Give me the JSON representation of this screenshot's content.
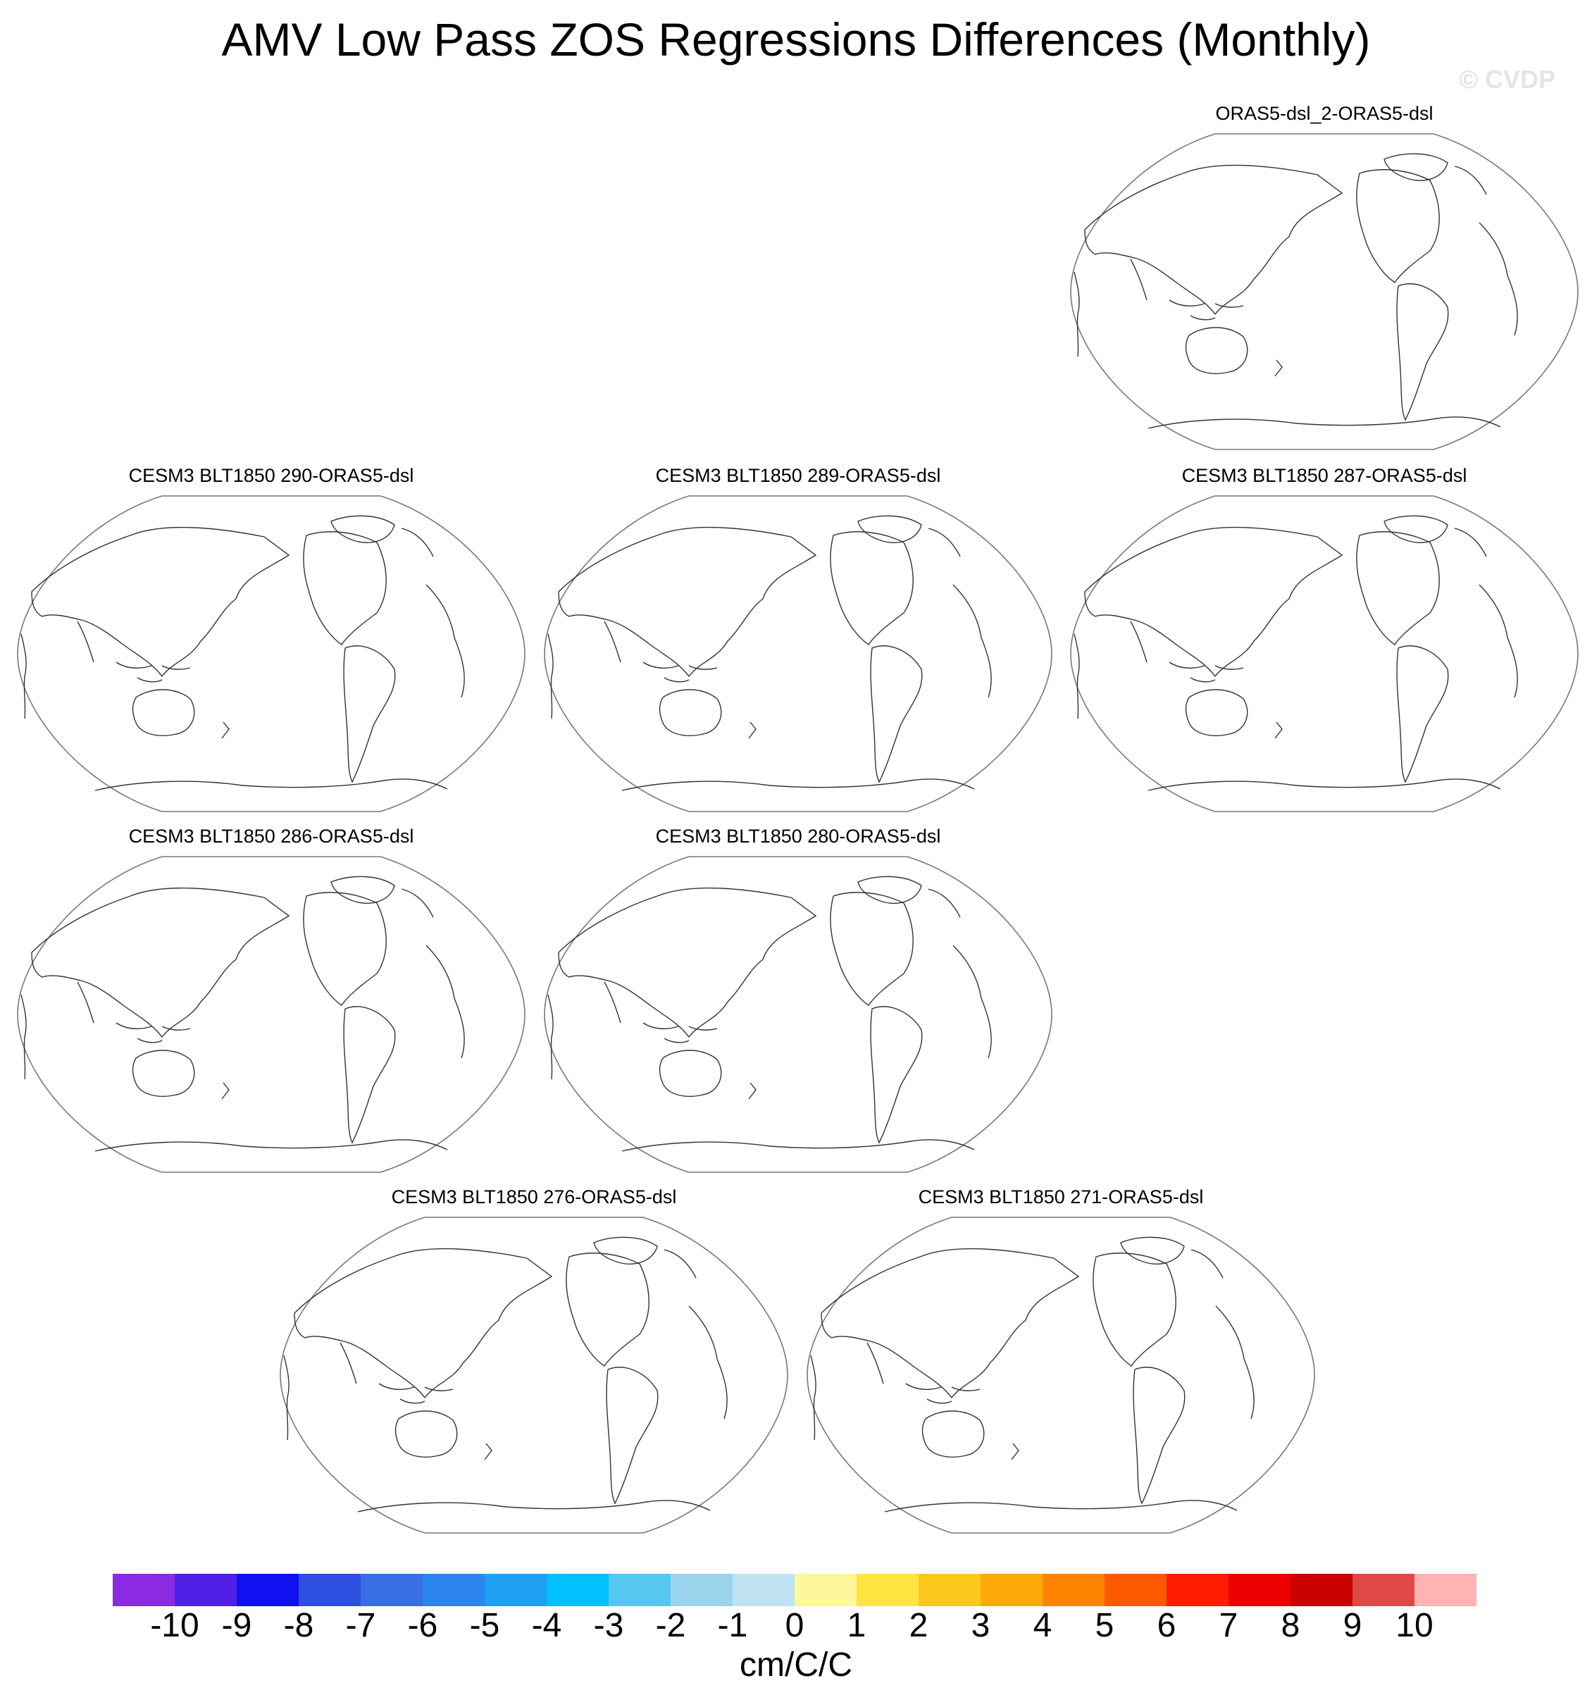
{
  "title": "AMV Low Pass ZOS Regressions Differences (Monthly)",
  "watermark": "© CVDP",
  "panels": [
    {
      "title": "ORAS5-dsl_2-ORAS5-dsl"
    },
    {
      "title": "CESM3 BLT1850 290-ORAS5-dsl"
    },
    {
      "title": "CESM3 BLT1850 289-ORAS5-dsl"
    },
    {
      "title": "CESM3 BLT1850 287-ORAS5-dsl"
    },
    {
      "title": "CESM3 BLT1850 286-ORAS5-dsl"
    },
    {
      "title": "CESM3 BLT1850 280-ORAS5-dsl"
    },
    {
      "title": "CESM3 BLT1850 276-ORAS5-dsl"
    },
    {
      "title": "CESM3 BLT1850 271-ORAS5-dsl"
    }
  ],
  "colorbar": {
    "colors": [
      "#8a2be2",
      "#5020e6",
      "#1010f0",
      "#2f4fe0",
      "#3a6ee4",
      "#2d86f0",
      "#1ea0f5",
      "#00c0ff",
      "#55c8f0",
      "#9ad4ec",
      "#bfe3f2",
      "#fdf89a",
      "#fde440",
      "#fdc81c",
      "#fdaa08",
      "#fd8400",
      "#fd5a00",
      "#fd1c00",
      "#ee0000",
      "#c80000",
      "#e04848",
      "#ffb4b4"
    ],
    "ticks": [
      "-10",
      "-9",
      "-8",
      "-7",
      "-6",
      "-5",
      "-4",
      "-3",
      "-2",
      "-1",
      "0",
      "1",
      "2",
      "3",
      "4",
      "5",
      "6",
      "7",
      "8",
      "9",
      "10"
    ],
    "units": "cm/C/C"
  }
}
